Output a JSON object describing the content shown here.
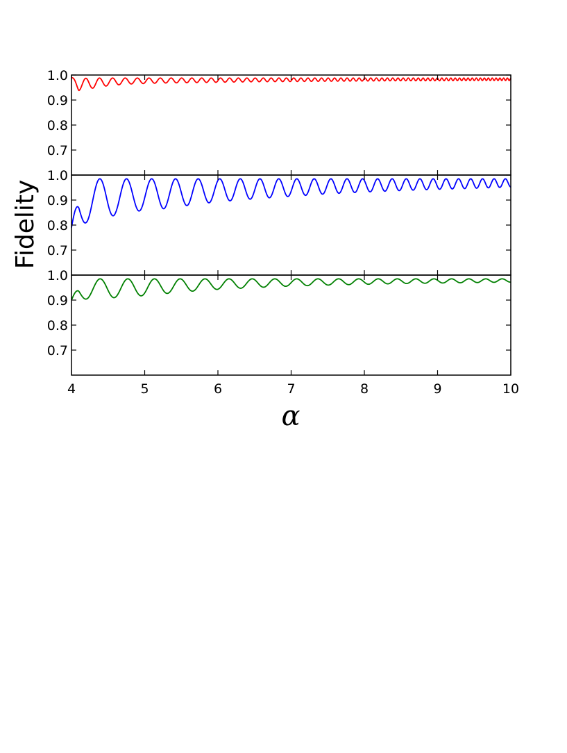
{
  "chart_data": {
    "type": "line",
    "xlabel": "α",
    "ylabel": "Fidelity",
    "xlim": [
      4,
      10
    ],
    "xticks": [
      "4",
      "5",
      "6",
      "7",
      "8",
      "9",
      "10"
    ],
    "grid": false,
    "legend": "none",
    "panels": [
      {
        "ylim": [
          0.6,
          1.0
        ],
        "yticks": [
          "0.7",
          "0.8",
          "0.9",
          "1.0"
        ],
        "color": "#ff0000",
        "series": [
          {
            "x": [
              4.0,
              4.1,
              4.2,
              4.3,
              4.4,
              4.5,
              4.6,
              4.7,
              4.8,
              4.9,
              5.0,
              5.25,
              5.5,
              5.75,
              6.0,
              6.5,
              7.0,
              7.5,
              8.0,
              8.5,
              9.0,
              9.5,
              10.0
            ],
            "envelope_min": [
              0.99,
              0.938,
              0.942,
              0.948,
              0.953,
              0.957,
              0.96,
              0.962,
              0.964,
              0.965,
              0.966,
              0.968,
              0.969,
              0.97,
              0.971,
              0.973,
              0.974,
              0.975,
              0.976,
              0.977,
              0.977,
              0.978,
              0.978
            ],
            "envelope_max": [
              0.99,
              0.985,
              0.987,
              0.988,
              0.988,
              0.988,
              0.988,
              0.988,
              0.988,
              0.988,
              0.988,
              0.988,
              0.988,
              0.988,
              0.988,
              0.988,
              0.988,
              0.988,
              0.988,
              0.988,
              0.988,
              0.988,
              0.988
            ],
            "oscillation_periods": [
              0.2,
              0.05
            ]
          }
        ]
      },
      {
        "ylim": [
          0.6,
          1.0
        ],
        "yticks": [
          "0.7",
          "0.8",
          "0.9",
          "1.0"
        ],
        "color": "#0000ff",
        "series": [
          {
            "x": [
              4.0,
              4.1,
              4.2,
              4.3,
              4.4,
              4.5,
              4.6,
              4.7,
              4.8,
              4.9,
              5.0,
              5.25,
              5.5,
              5.75,
              6.0,
              6.5,
              7.0,
              7.5,
              8.0,
              8.5,
              9.0,
              9.5,
              10.0
            ],
            "envelope_min": [
              0.79,
              0.79,
              0.81,
              0.82,
              0.825,
              0.83,
              0.84,
              0.845,
              0.85,
              0.855,
              0.86,
              0.865,
              0.875,
              0.885,
              0.893,
              0.905,
              0.915,
              0.925,
              0.932,
              0.938,
              0.943,
              0.947,
              0.952
            ],
            "envelope_max": [
              0.79,
              0.95,
              0.985,
              0.985,
              0.985,
              0.985,
              0.985,
              0.985,
              0.985,
              0.985,
              0.985,
              0.985,
              0.985,
              0.985,
              0.985,
              0.985,
              0.985,
              0.985,
              0.985,
              0.985,
              0.985,
              0.985,
              0.985
            ],
            "oscillation_periods": [
              0.4,
              0.15
            ]
          }
        ]
      },
      {
        "ylim": [
          0.6,
          1.0
        ],
        "yticks": [
          "0.7",
          "0.8",
          "0.9",
          "1.0"
        ],
        "color": "#008000",
        "series": [
          {
            "x": [
              4.0,
              4.1,
              4.2,
              4.3,
              4.4,
              4.5,
              4.6,
              4.7,
              4.8,
              4.9,
              5.0,
              5.25,
              5.5,
              5.75,
              6.0,
              6.5,
              7.0,
              7.5,
              8.0,
              8.5,
              9.0,
              9.5,
              10.0
            ],
            "envelope_min": [
              0.9,
              0.902,
              0.904,
              0.906,
              0.906,
              0.908,
              0.91,
              0.912,
              0.914,
              0.916,
              0.918,
              0.925,
              0.932,
              0.938,
              0.943,
              0.95,
              0.956,
              0.96,
              0.963,
              0.966,
              0.968,
              0.97,
              0.972
            ],
            "envelope_max": [
              0.9,
              0.97,
              0.983,
              0.985,
              0.985,
              0.985,
              0.985,
              0.985,
              0.985,
              0.985,
              0.985,
              0.985,
              0.985,
              0.985,
              0.985,
              0.985,
              0.985,
              0.985,
              0.985,
              0.985,
              0.985,
              0.985,
              0.985
            ],
            "oscillation_periods": [
              0.4,
              0.22
            ]
          }
        ]
      }
    ]
  }
}
